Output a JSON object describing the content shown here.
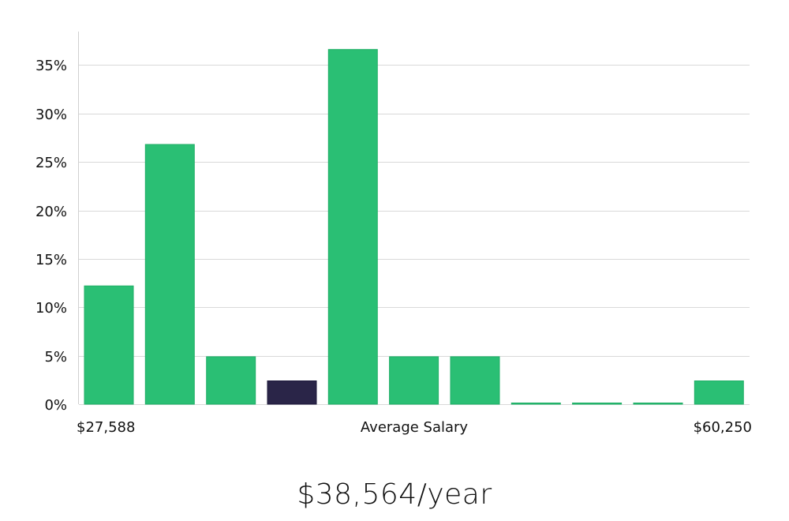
{
  "chart_data": {
    "type": "bar",
    "title": "",
    "xlabel": "Average Salary",
    "x_range_labels": {
      "min": "$27,588",
      "max": "$60,250"
    },
    "ylabel": "",
    "ylim": [
      0,
      38
    ],
    "yticks": [
      0,
      5,
      10,
      15,
      20,
      25,
      30,
      35
    ],
    "ytick_labels": [
      "0%",
      "5%",
      "10%",
      "15%",
      "20%",
      "25%",
      "30%",
      "35%"
    ],
    "grid": true,
    "values": [
      12.2,
      26.8,
      4.9,
      2.4,
      36.6,
      4.9,
      4.9,
      0,
      0,
      0,
      2.4
    ],
    "highlight_index": 3,
    "colors": {
      "bar": "#2abf74",
      "bar_edge": "#1fae66",
      "highlight": "#2a2548",
      "highlight_edge": "#1c183a"
    }
  },
  "caption": {
    "salary": "$38,564/year"
  }
}
